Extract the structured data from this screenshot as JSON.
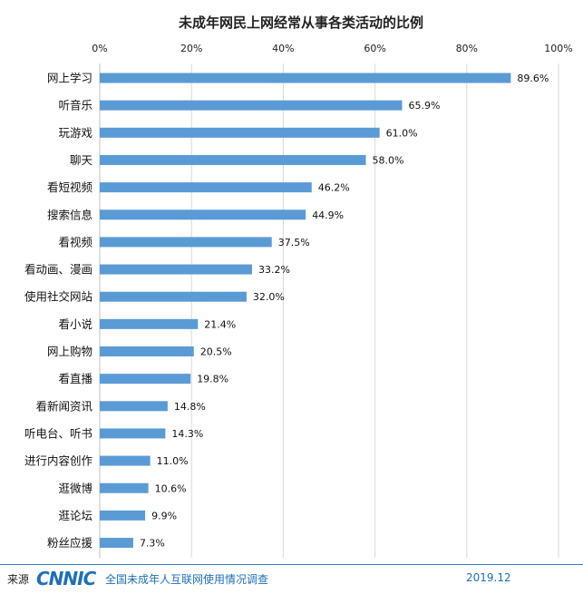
{
  "chart_data": {
    "type": "bar",
    "orientation": "horizontal",
    "title": "未成年网民上网经常从事各类活动的比例",
    "categories": [
      "网上学习",
      "听音乐",
      "玩游戏",
      "聊天",
      "看短视频",
      "搜索信息",
      "看视频",
      "看动画、漫画",
      "使用社交网站",
      "看小说",
      "网上购物",
      "看直播",
      "看新闻资讯",
      "听电台、听书",
      "进行内容创作",
      "逛微博",
      "逛论坛",
      "粉丝应援"
    ],
    "values": [
      89.6,
      65.9,
      61.0,
      58.0,
      46.2,
      44.9,
      37.5,
      33.2,
      32.0,
      21.4,
      20.5,
      19.8,
      14.8,
      14.3,
      11.0,
      10.6,
      9.9,
      7.3
    ],
    "value_labels": [
      "89.6%",
      "65.9%",
      "61.0%",
      "58.0%",
      "46.2%",
      "44.9%",
      "37.5%",
      "33.2%",
      "32.0%",
      "21.4%",
      "20.5%",
      "19.8%",
      "14.8%",
      "14.3%",
      "11.0%",
      "10.6%",
      "9.9%",
      "7.3%"
    ],
    "xlim": [
      0,
      100
    ],
    "xticks": [
      0,
      20,
      40,
      60,
      80,
      100
    ],
    "xtick_labels": [
      "0%",
      "20%",
      "40%",
      "60%",
      "80%",
      "100%"
    ],
    "xaxis_position": "top",
    "grid": "vertical",
    "bar_color": "#5b9bd5"
  },
  "footer": {
    "source_label": "来源",
    "logo_text": "CNNIC",
    "survey_name": "全国未成年人互联网使用情况调查",
    "date": "2019.12",
    "accent_color": "#1f6fb8"
  }
}
